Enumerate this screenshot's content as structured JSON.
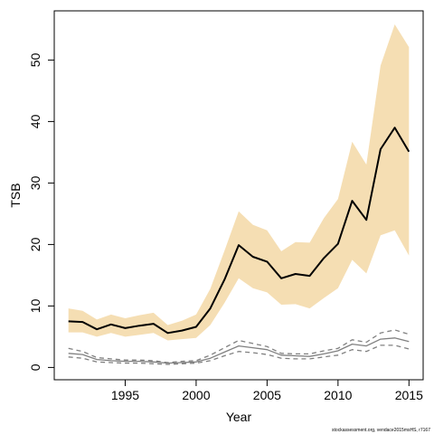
{
  "chart_data": {
    "type": "line",
    "xlabel": "Year",
    "ylabel": "TSB",
    "xlim": [
      1990,
      2016
    ],
    "ylim": [
      -2,
      58
    ],
    "xticks": [
      1995,
      2000,
      2005,
      2010,
      2015
    ],
    "yticks": [
      0,
      10,
      20,
      30,
      40,
      50
    ],
    "grid": false,
    "x": [
      1991,
      1992,
      1993,
      1994,
      1995,
      1996,
      1997,
      1998,
      1999,
      2000,
      2001,
      2002,
      2003,
      2004,
      2005,
      2006,
      2007,
      2008,
      2009,
      2010,
      2011,
      2012,
      2013,
      2014,
      2015
    ],
    "series": [
      {
        "role": "estimate",
        "color": "#000000",
        "style": "solid",
        "values": [
          7.5,
          7.4,
          6.2,
          7.0,
          6.4,
          6.8,
          7.1,
          5.6,
          6.0,
          6.6,
          9.6,
          14.3,
          19.9,
          18.0,
          17.2,
          14.5,
          15.2,
          14.9,
          17.8,
          20.1,
          27.1,
          24.0,
          35.5,
          39.0,
          35.1
        ]
      },
      {
        "role": "upper-ci",
        "color": "#f5deb3",
        "style": "band-upper",
        "values": [
          9.6,
          9.2,
          7.8,
          8.6,
          8.0,
          8.5,
          8.9,
          6.9,
          7.6,
          8.6,
          12.8,
          19.0,
          25.4,
          23.2,
          22.3,
          18.9,
          20.4,
          20.3,
          24.3,
          27.4,
          36.7,
          33.0,
          49.1,
          55.8,
          52.1
        ]
      },
      {
        "role": "lower-ci",
        "color": "#f5deb3",
        "style": "band-lower",
        "values": [
          5.7,
          5.7,
          5.0,
          5.6,
          5.0,
          5.3,
          5.6,
          4.4,
          4.6,
          4.8,
          6.9,
          10.5,
          14.5,
          12.9,
          12.2,
          10.2,
          10.3,
          9.6,
          11.3,
          12.9,
          17.5,
          15.3,
          21.5,
          22.3,
          18.2
        ]
      },
      {
        "role": "secondary-estimate",
        "color": "#808080",
        "style": "solid",
        "values": [
          2.3,
          2.1,
          1.3,
          1.1,
          1.0,
          1.0,
          0.9,
          0.7,
          0.8,
          0.9,
          1.5,
          2.5,
          3.5,
          3.2,
          2.9,
          2.0,
          1.9,
          1.8,
          2.2,
          2.7,
          3.8,
          3.5,
          4.6,
          4.8,
          4.2
        ]
      },
      {
        "role": "secondary-upper-ci",
        "color": "#808080",
        "style": "dashed",
        "values": [
          3.1,
          2.6,
          1.6,
          1.4,
          1.2,
          1.2,
          1.1,
          0.8,
          1.0,
          1.1,
          2.0,
          3.2,
          4.4,
          3.9,
          3.4,
          2.3,
          2.2,
          2.2,
          2.7,
          3.1,
          4.5,
          4.1,
          5.6,
          6.1,
          5.4
        ]
      },
      {
        "role": "secondary-lower-ci",
        "color": "#808080",
        "style": "dashed",
        "values": [
          1.7,
          1.5,
          0.9,
          0.8,
          0.7,
          0.7,
          0.6,
          0.5,
          0.6,
          0.7,
          1.1,
          1.9,
          2.6,
          2.4,
          2.1,
          1.5,
          1.4,
          1.4,
          1.7,
          2.0,
          2.9,
          2.6,
          3.6,
          3.6,
          3.0
        ]
      }
    ]
  },
  "footer": {
    "credit": "stockassessment.org, vendace2015msHS, r7167"
  }
}
